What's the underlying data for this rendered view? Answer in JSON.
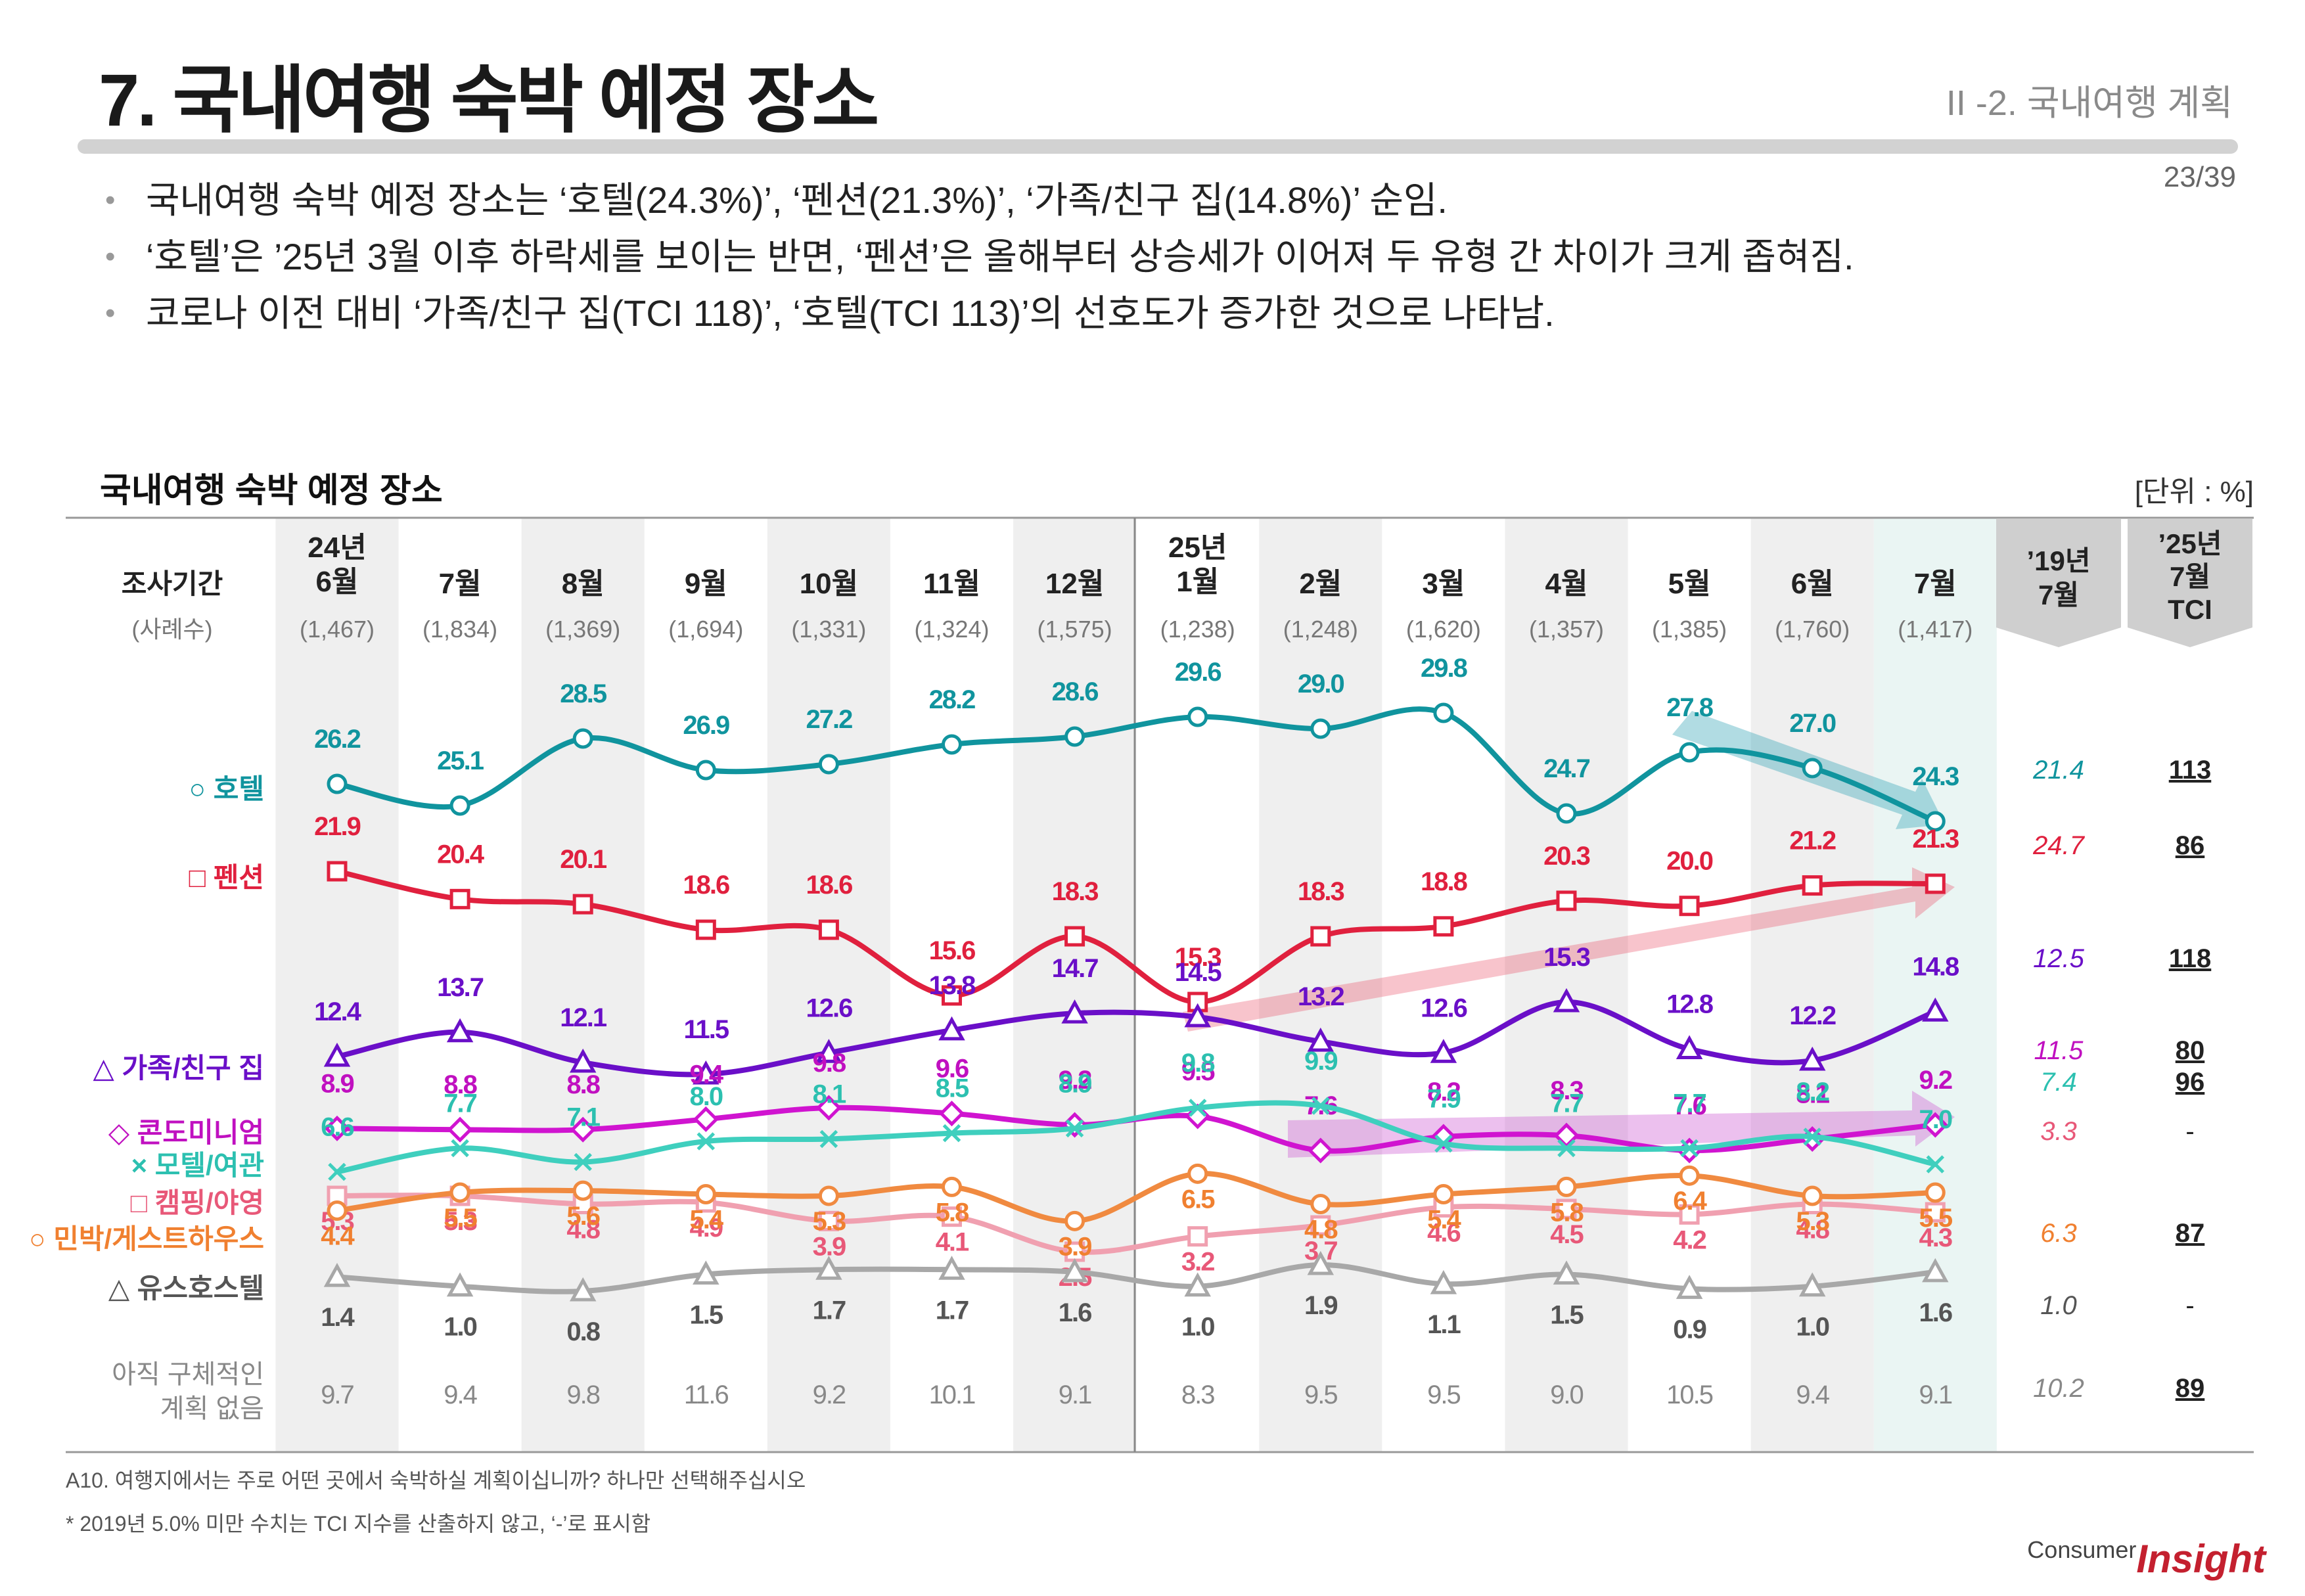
{
  "header": {
    "title": "7. 국내여행 숙박 예정 장소",
    "section": "II -2. 국내여행 계획",
    "page": "23/39"
  },
  "bullets": [
    "국내여행 숙박 예정 장소는 ‘호텔(24.3%)’, ‘펜션(21.3%)’, ‘가족/친구 집(14.8%)’ 순임.",
    "‘호텔’은 ’25년 3월 이후 하락세를 보이는 반면, ‘펜션’은 올해부터 상승세가 이어져 두 유형 간 차이가 크게 좁혀짐.",
    "코로나 이전 대비 ‘가족/친구 집(TCI 118)’, ‘호텔(TCI 113)’의 선호도가 증가한 것으로 나타남."
  ],
  "chart_title": "국내여행 숙박 예정 장소",
  "unit": "[단위 : %]",
  "footnotes": [
    "A10. 여행지에서는 주로 어떤 곳에서 숙박하실 계획이십니까? 하나만 선택해주십시오",
    "* 2019년 5.0% 미만 수치는 TCI 지수를 산출하지 않고, ‘-’로 표시함"
  ],
  "logo": {
    "prefix": "Consumer",
    "brand": "Insight"
  },
  "chart_data": {
    "type": "line",
    "title": "국내여행 숙박 예정 장소",
    "unit": "%",
    "period_label": "조사기간",
    "sample_label": "(사례수)",
    "categories": [
      [
        "24년",
        "6월"
      ],
      [
        "7월"
      ],
      [
        "8월"
      ],
      [
        "9월"
      ],
      [
        "10월"
      ],
      [
        "11월"
      ],
      [
        "12월"
      ],
      [
        "25년",
        "1월"
      ],
      [
        "2월"
      ],
      [
        "3월"
      ],
      [
        "4월"
      ],
      [
        "5월"
      ],
      [
        "6월"
      ],
      [
        "7월"
      ]
    ],
    "samples": [
      "(1,467)",
      "(1,834)",
      "(1,369)",
      "(1,694)",
      "(1,331)",
      "(1,324)",
      "(1,575)",
      "(1,238)",
      "(1,248)",
      "(1,620)",
      "(1,357)",
      "(1,385)",
      "(1,760)",
      "(1,417)"
    ],
    "ref_headers": [
      [
        "’19년",
        "7월"
      ],
      [
        "’25년",
        "7월",
        "TCI"
      ]
    ],
    "series": [
      {
        "name": "○ 호텔",
        "marker": "circle",
        "color": "#10949e",
        "label_color": "#10949e",
        "line": true,
        "values": [
          26.2,
          25.1,
          28.5,
          26.9,
          27.2,
          28.2,
          28.6,
          29.6,
          29.0,
          29.8,
          24.7,
          27.8,
          27.0,
          24.3
        ],
        "ref2019": "21.4",
        "tci": "113"
      },
      {
        "name": "□ 펜션",
        "marker": "square",
        "color": "#e0203e",
        "label_color": "#e0203e",
        "line": true,
        "values": [
          21.9,
          20.4,
          20.1,
          18.6,
          18.6,
          15.6,
          18.3,
          15.3,
          18.3,
          18.8,
          20.3,
          20.0,
          21.2,
          21.3
        ],
        "ref2019": "24.7",
        "tci": "86"
      },
      {
        "name": "△ 가족/친구 집",
        "marker": "triangle",
        "color": "#6a0fc8",
        "label_color": "#6a0fc8",
        "line": true,
        "values": [
          12.4,
          13.7,
          12.1,
          11.5,
          12.6,
          13.8,
          14.7,
          14.5,
          13.2,
          12.6,
          15.3,
          12.8,
          12.2,
          14.8
        ],
        "ref2019": "12.5",
        "tci": "118"
      },
      {
        "name": "◇ 콘도미니엄",
        "marker": "diamond",
        "color": "#d014d0",
        "label_color": "#c010c0",
        "line": true,
        "values": [
          8.9,
          8.8,
          8.8,
          9.4,
          9.8,
          9.6,
          9.2,
          9.5,
          7.6,
          8.2,
          8.3,
          7.6,
          8.1,
          9.2
        ],
        "ref2019": "11.5",
        "tci": "80"
      },
      {
        "name": "× 모텔/여관",
        "marker": "x",
        "color": "#3fcfbe",
        "label_color": "#2cc0b0",
        "line": true,
        "values": [
          6.6,
          7.7,
          7.1,
          8.0,
          8.1,
          8.5,
          8.9,
          9.8,
          9.9,
          7.9,
          7.7,
          7.7,
          8.2,
          7.0
        ],
        "ref2019": "7.4",
        "tci": "96"
      },
      {
        "name": "□ 캠핑/야영",
        "marker": "square",
        "color": "#f0a0b0",
        "label_color": "#e85878",
        "line": true,
        "values": [
          5.3,
          5.3,
          4.8,
          4.9,
          3.9,
          4.1,
          2.5,
          3.2,
          3.7,
          4.6,
          4.5,
          4.2,
          4.8,
          4.3
        ],
        "ref2019": "3.3",
        "tci": "-"
      },
      {
        "name": "○ 민박/게스트하우스",
        "marker": "circle",
        "color": "#f08a40",
        "label_color": "#f08030",
        "line": true,
        "values": [
          4.4,
          5.5,
          5.6,
          5.4,
          5.3,
          5.8,
          3.9,
          6.5,
          4.8,
          5.4,
          5.8,
          6.4,
          5.3,
          5.5
        ],
        "ref2019": "6.3",
        "tci": "87"
      },
      {
        "name": "△ 유스호스텔",
        "marker": "triangle",
        "color": "#a8a8a8",
        "label_color": "#555555",
        "line": true,
        "values": [
          1.4,
          1.0,
          0.8,
          1.5,
          1.7,
          1.7,
          1.6,
          1.0,
          1.9,
          1.1,
          1.5,
          0.9,
          1.0,
          1.6
        ],
        "ref2019": "1.0",
        "tci": "-"
      },
      {
        "name": "아직 구체적인 계획 없음",
        "name_lines": [
          "아직 구체적인",
          "계획 없음"
        ],
        "marker": "none",
        "color": "#888888",
        "label_color": "#888888",
        "line": false,
        "values": [
          9.7,
          9.4,
          9.8,
          11.6,
          9.2,
          10.1,
          9.1,
          8.3,
          9.5,
          9.5,
          9.0,
          10.5,
          9.4,
          9.1
        ],
        "ref2019": "10.2",
        "tci": "89"
      }
    ]
  }
}
